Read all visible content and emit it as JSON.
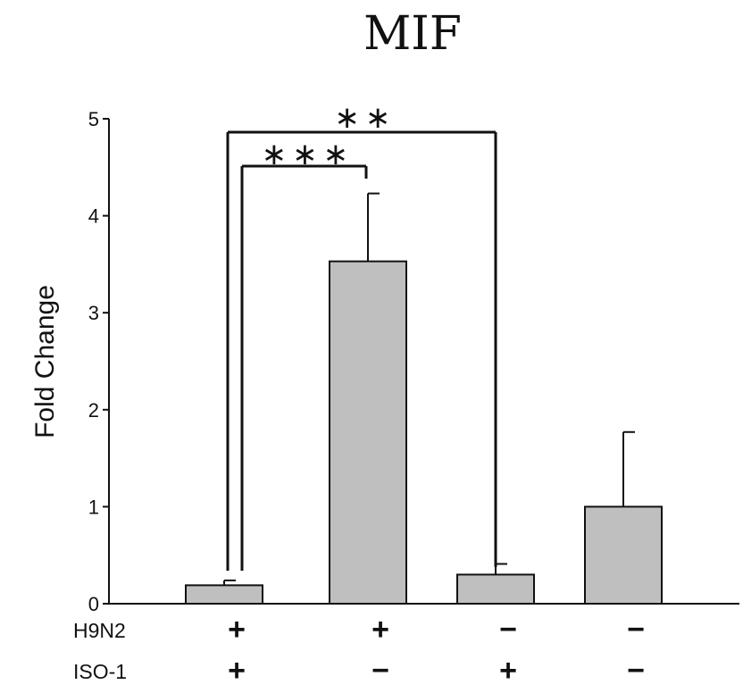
{
  "chart_data": {
    "type": "bar",
    "title": "MIF",
    "ylabel": "Fold Change",
    "ylim": [
      0,
      5
    ],
    "yticks": [
      0,
      1,
      2,
      3,
      4,
      5
    ],
    "categories": [
      "H9N2+ ISO-1+",
      "H9N2+ ISO-1−",
      "H9N2− ISO-1+",
      "H9N2− ISO-1−"
    ],
    "values": [
      0.19,
      3.53,
      0.3,
      1.0
    ],
    "errors": [
      0.05,
      0.7,
      0.11,
      0.77
    ],
    "bar_color": "#bfbfbf",
    "condition_rows": [
      {
        "label": "H9N2",
        "signs": [
          "+",
          "+",
          "−",
          "−"
        ]
      },
      {
        "label": "ISO-1",
        "signs": [
          "+",
          "−",
          "+",
          "−"
        ]
      }
    ],
    "significance": [
      {
        "from": 0,
        "to": 2,
        "label": "**"
      },
      {
        "from": 0,
        "to": 1,
        "label": "***"
      }
    ]
  }
}
